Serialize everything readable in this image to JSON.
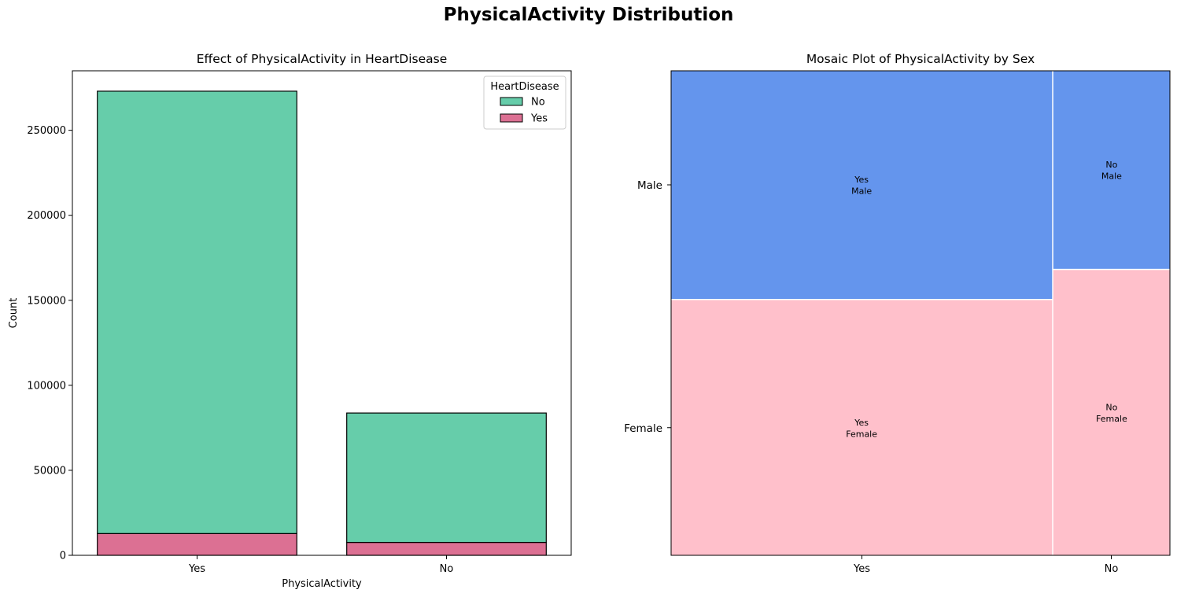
{
  "suptitle": "PhysicalActivity Distribution",
  "chart_data": [
    {
      "type": "bar",
      "stacked": true,
      "title": "Effect of PhysicalActivity in HeartDisease",
      "xlabel": "PhysicalActivity",
      "ylabel": "Count",
      "categories": [
        "Yes",
        "No"
      ],
      "ylim": [
        0,
        285000
      ],
      "yticks": [
        0,
        50000,
        100000,
        150000,
        200000,
        250000
      ],
      "legend": {
        "title": "HeartDisease",
        "placement": "top-right"
      },
      "series": [
        {
          "name": "Yes",
          "color": "#dc7093",
          "values": [
            12800,
            7600
          ]
        },
        {
          "name": "No",
          "color": "#66cdaa",
          "values": [
            260200,
            76100
          ]
        }
      ]
    },
    {
      "type": "mosaic",
      "title": "Mosaic Plot of PhysicalActivity by Sex",
      "x_categories": [
        "Yes",
        "No"
      ],
      "y_categories": [
        "Male",
        "Female"
      ],
      "x_proportions": [
        0.765,
        0.235
      ],
      "colors": {
        "Male": "#6495ed",
        "Female": "#ffc0cb"
      },
      "cells": [
        {
          "x": "Yes",
          "y": "Female",
          "proportion": 0.528,
          "label": [
            "Yes",
            "Female"
          ]
        },
        {
          "x": "Yes",
          "y": "Male",
          "proportion": 0.472,
          "label": [
            "Yes",
            "Male"
          ]
        },
        {
          "x": "No",
          "y": "Female",
          "proportion": 0.59,
          "label": [
            "No",
            "Female"
          ]
        },
        {
          "x": "No",
          "y": "Male",
          "proportion": 0.41,
          "label": [
            "No",
            "Male"
          ]
        }
      ]
    }
  ]
}
